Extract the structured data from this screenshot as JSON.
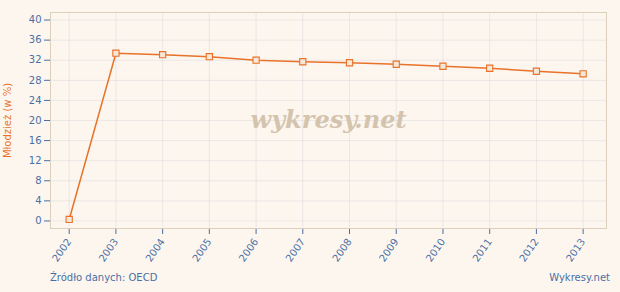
{
  "chart_data": {
    "type": "line",
    "x": [
      2002,
      2003,
      2004,
      2005,
      2006,
      2007,
      2008,
      2009,
      2010,
      2011,
      2012,
      2013
    ],
    "values": [
      0.3,
      33.4,
      33.1,
      32.7,
      32.0,
      31.7,
      31.5,
      31.2,
      30.8,
      30.4,
      29.8,
      29.3
    ],
    "color": "#e8722a",
    "marker": "square",
    "ylabel": "Młodzież (w %)",
    "xlim": [
      2001.6,
      2013.5
    ],
    "xticks": [
      2002,
      2003,
      2004,
      2005,
      2006,
      2007,
      2008,
      2009,
      2010,
      2011,
      2012,
      2013
    ],
    "ylim": [
      -1.5,
      41.5
    ],
    "yticks": [
      0,
      4,
      8,
      12,
      16,
      20,
      24,
      28,
      32,
      36,
      40
    ],
    "grid": true,
    "annotations": [
      "wykresy.net",
      "Źródło danych:  OECD",
      "Wykresy.net"
    ]
  }
}
